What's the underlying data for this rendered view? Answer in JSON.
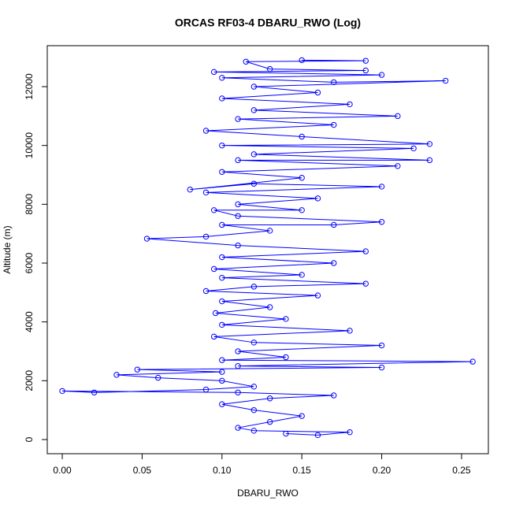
{
  "chart_data": {
    "type": "line",
    "title": "ORCAS RF03-4 DBARU_RWO (Log)",
    "x_label": "DBARU_RWO",
    "y_label": "Altitude (m)",
    "color": "#0000ff",
    "markers": true,
    "x": [
      0.14,
      0.16,
      0.18,
      0.12,
      0.11,
      0.13,
      0.15,
      0.12,
      0.1,
      0.13,
      0.17,
      0.11,
      0.0,
      0.02,
      0.09,
      0.12,
      0.1,
      0.06,
      0.034,
      0.1,
      0.047,
      0.2,
      0.11,
      0.257,
      0.1,
      0.14,
      0.11,
      0.2,
      0.12,
      0.095,
      0.18,
      0.1,
      0.14,
      0.096,
      0.13,
      0.1,
      0.16,
      0.09,
      0.12,
      0.19,
      0.1,
      0.15,
      0.095,
      0.17,
      0.1,
      0.19,
      0.11,
      0.053,
      0.09,
      0.13,
      0.1,
      0.17,
      0.2,
      0.11,
      0.095,
      0.15,
      0.11,
      0.16,
      0.09,
      0.2,
      0.12,
      0.08,
      0.15,
      0.1,
      0.21,
      0.11,
      0.23,
      0.12,
      0.22,
      0.1,
      0.23,
      0.15,
      0.09,
      0.17,
      0.11,
      0.21,
      0.12,
      0.18,
      0.1,
      0.16,
      0.12,
      0.24,
      0.17,
      0.1,
      0.2,
      0.095,
      0.19,
      0.13,
      0.115,
      0.19,
      0.15
    ],
    "values": [
      200,
      150,
      250,
      300,
      400,
      600,
      800,
      1000,
      1200,
      1400,
      1500,
      1600,
      1650,
      1600,
      1700,
      1800,
      2000,
      2100,
      2200,
      2300,
      2380,
      2450,
      2500,
      2650,
      2700,
      2800,
      3000,
      3200,
      3300,
      3500,
      3700,
      3900,
      4100,
      4300,
      4500,
      4700,
      4900,
      5050,
      5200,
      5300,
      5500,
      5600,
      5800,
      6000,
      6200,
      6400,
      6600,
      6830,
      6900,
      7100,
      7300,
      7300,
      7400,
      7600,
      7800,
      7800,
      8000,
      8200,
      8400,
      8600,
      8700,
      8500,
      8900,
      9100,
      9300,
      9500,
      9500,
      9700,
      9900,
      10000,
      10050,
      10300,
      10500,
      10700,
      10900,
      11000,
      11200,
      11400,
      11600,
      11800,
      12000,
      12200,
      12150,
      12300,
      12400,
      12500,
      12550,
      12600,
      12850,
      12880,
      12900
    ],
    "xlim": [
      -0.0094,
      0.2668
    ],
    "ylim": [
      -482,
      13393
    ],
    "xticks": [
      {
        "value": 0,
        "label": "0.00"
      },
      0.05,
      {
        "value": 0.1,
        "label": "0.10"
      },
      0.15,
      {
        "value": 0.2,
        "label": "0.20"
      },
      0.25
    ],
    "yticks": [
      0,
      2000,
      4000,
      6000,
      8000,
      10000,
      12000
    ]
  }
}
